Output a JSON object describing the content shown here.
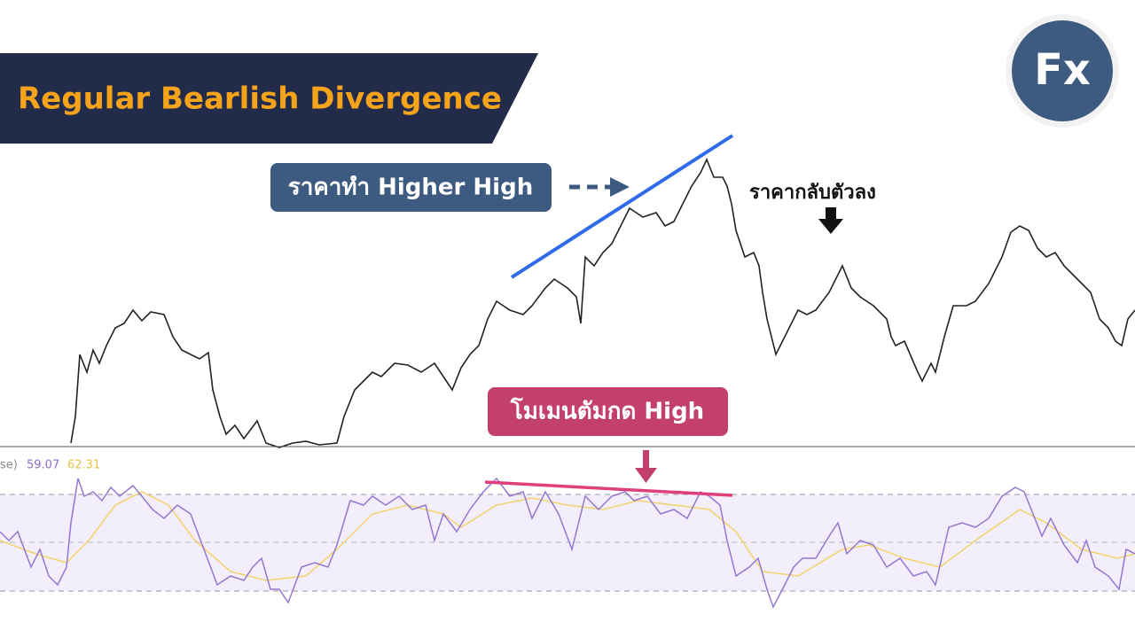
{
  "header": {
    "title": "Regular Bearlish Divergence"
  },
  "annotations": {
    "price": "ราคาทำ Higher High",
    "reversal": "ราคากลับตัวลง",
    "momentum": "โมเมนตัมกด High"
  },
  "indicator": {
    "label": "se)",
    "values": [
      59.07,
      62.31
    ]
  },
  "logo": "Fx"
}
